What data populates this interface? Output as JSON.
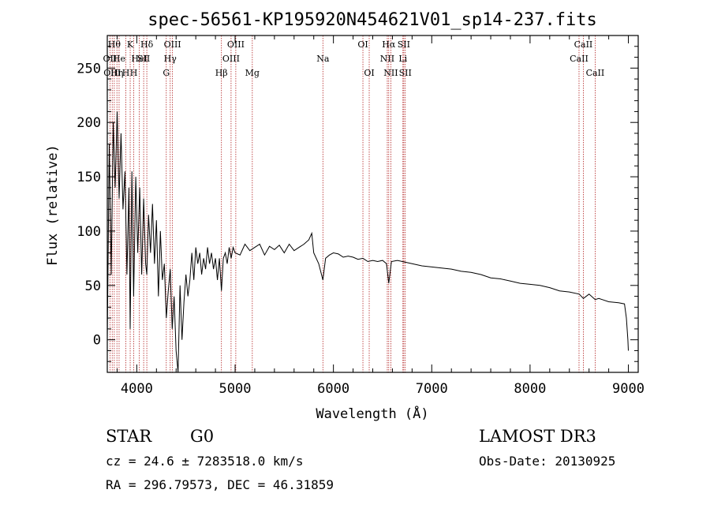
{
  "chart_data": {
    "type": "line",
    "title": "spec-56561-KP195920N454621V01_sp14-237.fits",
    "xlabel": "Wavelength (Å)",
    "ylabel": "Flux (relative)",
    "xlim": [
      3700,
      9100
    ],
    "ylim": [
      -30,
      280
    ],
    "x_ticks": [
      4000,
      5000,
      6000,
      7000,
      8000,
      9000
    ],
    "y_ticks": [
      0,
      50,
      100,
      150,
      200,
      250
    ],
    "grid": false,
    "series": [
      {
        "x": [
          3700,
          3720,
          3740,
          3760,
          3780,
          3800,
          3820,
          3840,
          3860,
          3880,
          3900,
          3920,
          3933,
          3950,
          3968,
          3990,
          4010,
          4030,
          4050,
          4070,
          4090,
          4102,
          4120,
          4140,
          4160,
          4180,
          4200,
          4220,
          4240,
          4260,
          4280,
          4300,
          4320,
          4340,
          4360,
          4380,
          4400,
          4420,
          4440,
          4460,
          4480,
          4500,
          4520,
          4540,
          4560,
          4580,
          4600,
          4620,
          4640,
          4660,
          4680,
          4700,
          4720,
          4740,
          4760,
          4780,
          4800,
          4820,
          4840,
          4861,
          4880,
          4900,
          4920,
          4940,
          4960,
          4980,
          5000,
          5050,
          5100,
          5150,
          5200,
          5250,
          5300,
          5350,
          5400,
          5450,
          5500,
          5550,
          5600,
          5650,
          5700,
          5750,
          5780,
          5800,
          5850,
          5893,
          5920,
          5960,
          6000,
          6050,
          6100,
          6150,
          6200,
          6250,
          6300,
          6350,
          6400,
          6450,
          6500,
          6540,
          6563,
          6590,
          6650,
          6700,
          6800,
          6900,
          7000,
          7100,
          7200,
          7300,
          7400,
          7500,
          7600,
          7700,
          7800,
          7900,
          8000,
          8100,
          8200,
          8300,
          8400,
          8500,
          8542,
          8600,
          8662,
          8700,
          8800,
          8900,
          8960,
          8980,
          8995,
          9000
        ],
        "values": [
          0,
          180,
          60,
          200,
          140,
          210,
          130,
          190,
          120,
          155,
          60,
          140,
          10,
          155,
          40,
          150,
          80,
          140,
          60,
          130,
          70,
          60,
          115,
          80,
          125,
          70,
          110,
          40,
          100,
          55,
          70,
          20,
          45,
          65,
          10,
          40,
          -10,
          -30,
          50,
          0,
          35,
          60,
          40,
          55,
          80,
          55,
          85,
          70,
          80,
          60,
          75,
          65,
          85,
          70,
          80,
          65,
          75,
          55,
          75,
          45,
          75,
          80,
          70,
          85,
          75,
          85,
          80,
          78,
          88,
          82,
          85,
          88,
          78,
          86,
          83,
          87,
          80,
          88,
          82,
          85,
          88,
          92,
          98,
          80,
          70,
          55,
          75,
          78,
          80,
          79,
          76,
          77,
          76,
          74,
          75,
          72,
          73,
          72,
          73,
          70,
          52,
          72,
          73,
          72,
          70,
          68,
          67,
          66,
          65,
          63,
          62,
          60,
          57,
          56,
          54,
          52,
          51,
          50,
          48,
          45,
          44,
          42,
          38,
          42,
          37,
          38,
          35,
          34,
          33,
          20,
          0,
          -10
        ]
      }
    ],
    "line_markers": [
      {
        "wl": 3727,
        "label": "OII",
        "row": 1
      },
      {
        "wl": 3750,
        "label": "OIII",
        "row": 2
      },
      {
        "wl": 3771,
        "label": "Hθ",
        "row": 0
      },
      {
        "wl": 3798,
        "label": "Hη",
        "row": 2
      },
      {
        "wl": 3820,
        "label": "He",
        "row": 1
      },
      {
        "wl": 3889,
        "label": "H",
        "row": 2
      },
      {
        "wl": 3933,
        "label": "K",
        "row": 0
      },
      {
        "wl": 3969,
        "label": "H",
        "row": 2
      },
      {
        "wl": 4026,
        "label": "HeI",
        "row": 1
      },
      {
        "wl": 4070,
        "label": "SII",
        "row": 1
      },
      {
        "wl": 4102,
        "label": "Hδ",
        "row": 0
      },
      {
        "wl": 4300,
        "label": "G",
        "row": 2
      },
      {
        "wl": 4340,
        "label": "Hγ",
        "row": 1
      },
      {
        "wl": 4363,
        "label": "OIII",
        "row": 0
      },
      {
        "wl": 4861,
        "label": "Hβ",
        "row": 2
      },
      {
        "wl": 4959,
        "label": "OIII",
        "row": 1
      },
      {
        "wl": 5007,
        "label": "OIII",
        "row": 0
      },
      {
        "wl": 5175,
        "label": "Mg",
        "row": 2
      },
      {
        "wl": 5893,
        "label": "Na",
        "row": 1
      },
      {
        "wl": 6300,
        "label": "OI",
        "row": 0
      },
      {
        "wl": 6364,
        "label": "OI",
        "row": 2
      },
      {
        "wl": 6548,
        "label": "NII",
        "row": 1
      },
      {
        "wl": 6563,
        "label": "Hα",
        "row": 0
      },
      {
        "wl": 6584,
        "label": "NII",
        "row": 2
      },
      {
        "wl": 6707,
        "label": "Li",
        "row": 1
      },
      {
        "wl": 6716,
        "label": "SII",
        "row": 0
      },
      {
        "wl": 6731,
        "label": "SII",
        "row": 2
      },
      {
        "wl": 8498,
        "label": "CaII",
        "row": 1
      },
      {
        "wl": 8542,
        "label": "CaII",
        "row": 0
      },
      {
        "wl": 8662,
        "label": "CaII",
        "row": 2
      }
    ]
  },
  "info": {
    "class": "STAR",
    "subclass": "G0",
    "survey": "LAMOST DR3",
    "cz": "cz = 24.6 ± 7283518.0 km/s",
    "obs_date": "Obs-Date: 20130925",
    "coords": "RA = 296.79573, DEC =  46.31859"
  },
  "colors": {
    "spectrum": "#000000",
    "line_marker": "#b22222",
    "axes": "#000000"
  }
}
